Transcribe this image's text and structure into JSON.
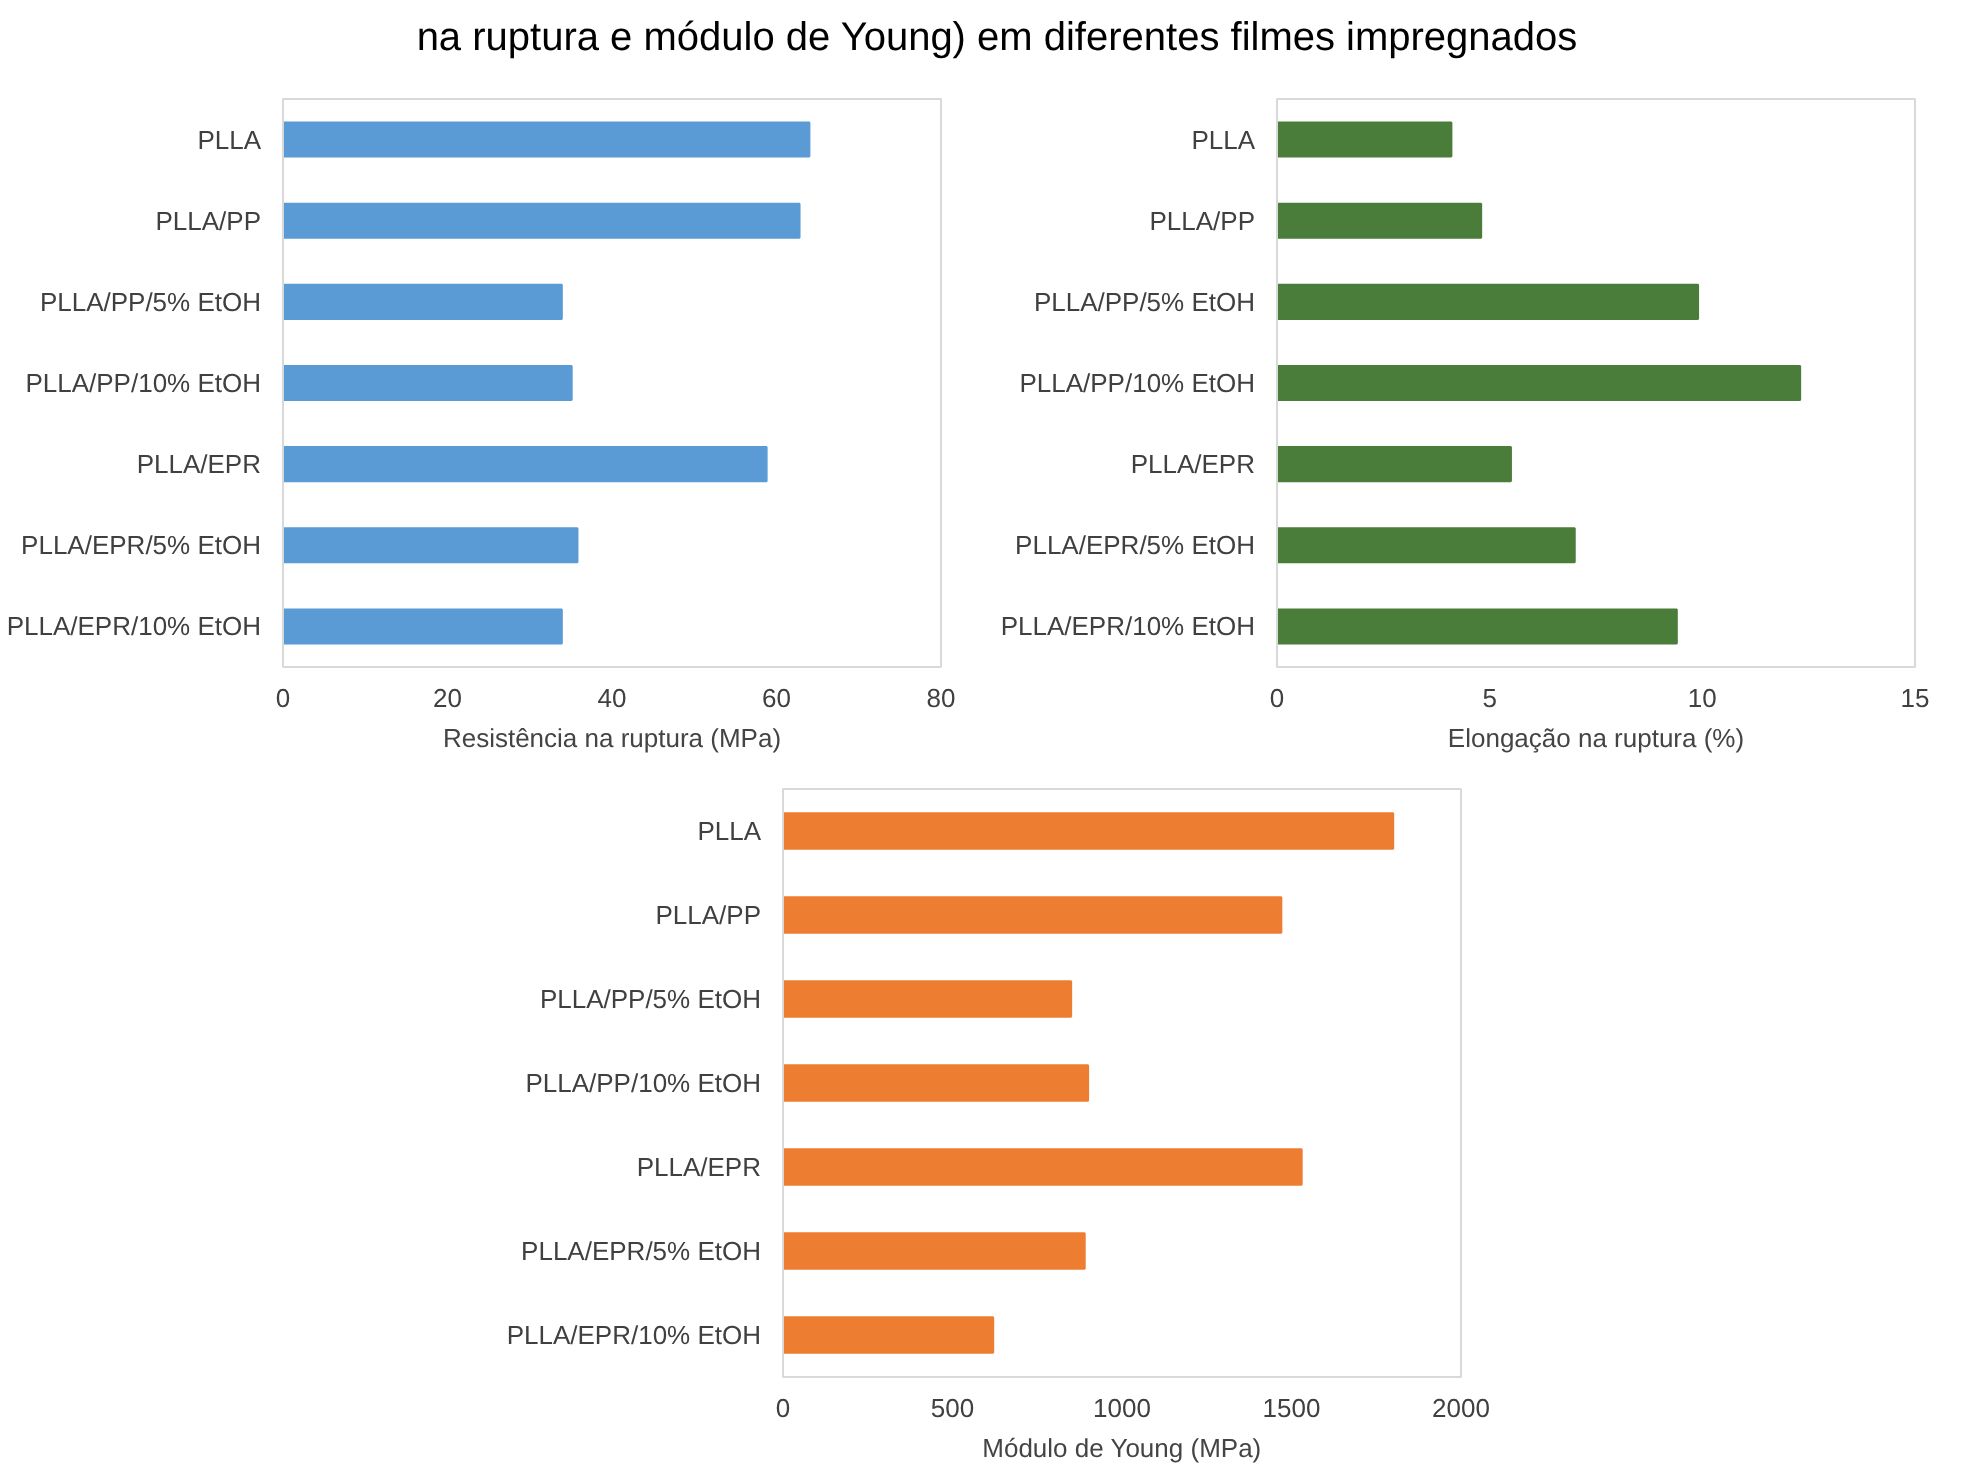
{
  "chart_data": [
    {
      "type": "bar",
      "orientation": "horizontal",
      "title": "na ruptura e módulo de Young) em diferentes filmes impregnados",
      "categories": [
        "PLLA",
        "PLLA/PP",
        "PLLA/PP/5% EtOH",
        "PLLA/PP/10% EtOH",
        "PLLA/EPR",
        "PLLA/EPR/5% EtOH",
        "PLLA/EPR/10% EtOH"
      ],
      "values": [
        64,
        62.8,
        33.9,
        35.1,
        58.8,
        35.8,
        33.9
      ],
      "color": "#5b9bd5",
      "xlabel": "Resistência na ruptura (MPa)",
      "xlim": [
        0,
        80
      ],
      "xticks": [
        0,
        20,
        40,
        60,
        80
      ]
    },
    {
      "type": "bar",
      "orientation": "horizontal",
      "categories": [
        "PLLA",
        "PLLA/PP",
        "PLLA/PP/5% EtOH",
        "PLLA/PP/10% EtOH",
        "PLLA/EPR",
        "PLLA/EPR/5% EtOH",
        "PLLA/EPR/10% EtOH"
      ],
      "values": [
        4.1,
        4.8,
        9.9,
        12.3,
        5.5,
        7.0,
        9.4
      ],
      "color": "#4a7c3a",
      "xlabel": "Elongação na ruptura (%)",
      "xlim": [
        0,
        15
      ],
      "xticks": [
        0,
        5,
        10,
        15
      ]
    },
    {
      "type": "bar",
      "orientation": "horizontal",
      "categories": [
        "PLLA",
        "PLLA/PP",
        "PLLA/PP/5% EtOH",
        "PLLA/PP/10% EtOH",
        "PLLA/EPR",
        "PLLA/EPR/5% EtOH",
        "PLLA/EPR/10% EtOH"
      ],
      "values": [
        1800,
        1470,
        850,
        900,
        1530,
        890,
        620
      ],
      "color": "#ed7d31",
      "xlabel": "Módulo de Young (MPa)",
      "xlim": [
        0,
        2000
      ],
      "xticks": [
        0,
        500,
        1000,
        1500,
        2000
      ]
    }
  ]
}
